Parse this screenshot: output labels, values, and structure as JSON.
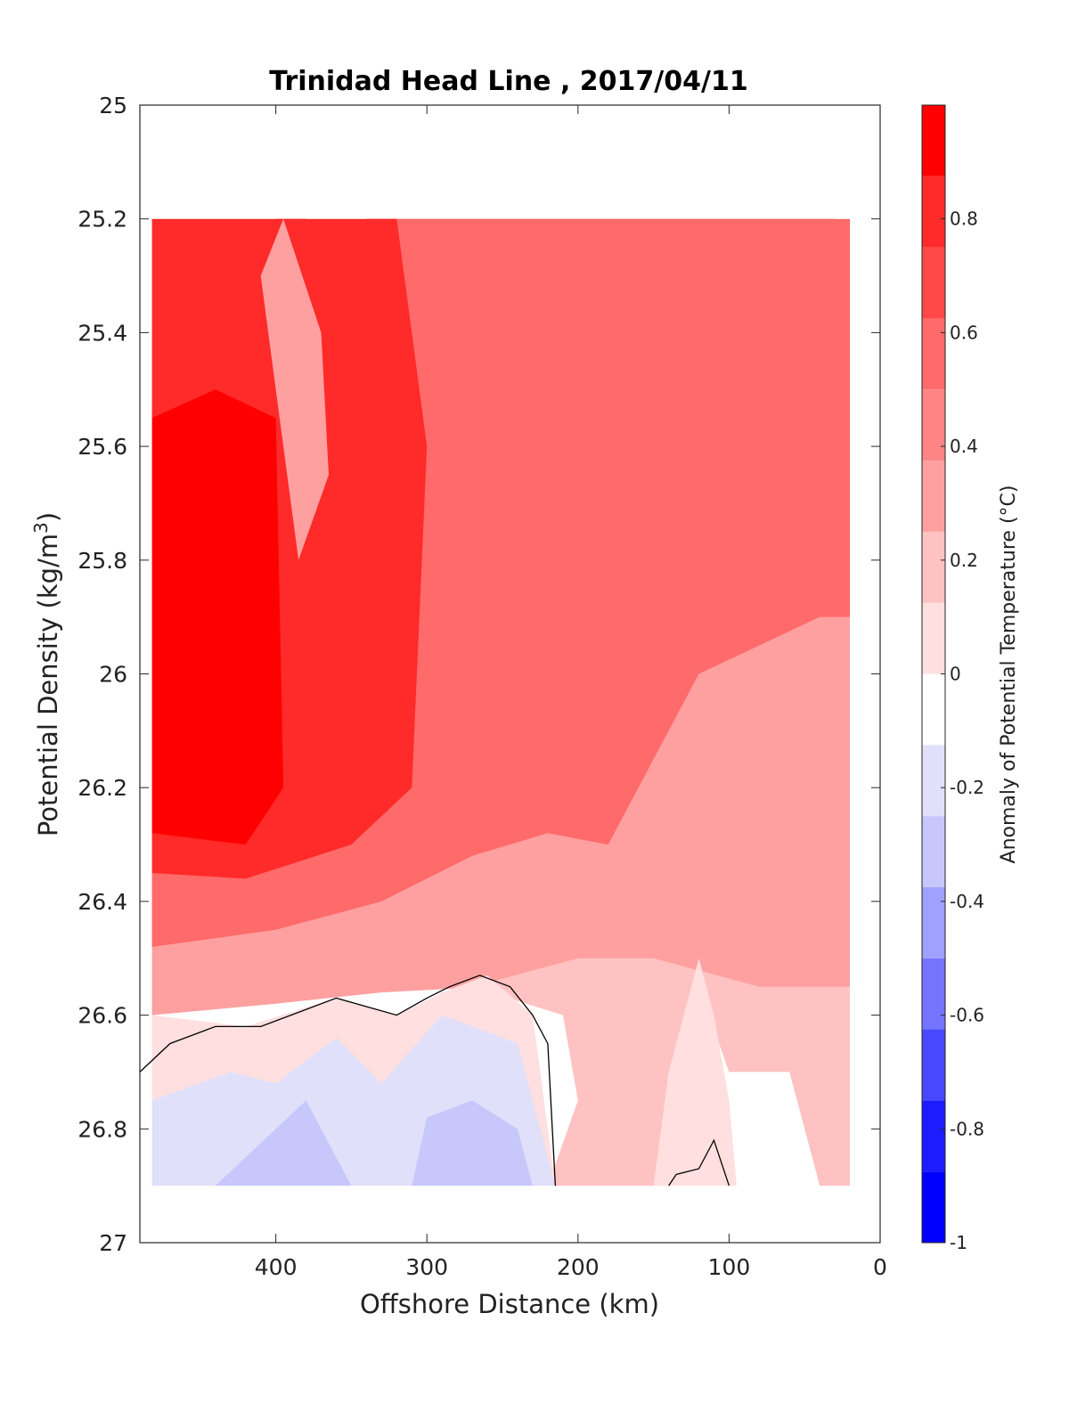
{
  "chart_data": {
    "type": "contour",
    "title": "Trinidad Head Line , 2017/04/11",
    "xlabel": "Offshore Distance (km)",
    "ylabel": "Potential Density (kg/m",
    "ylabel_sup": "3",
    "ylabel_end": ")",
    "xlim": [
      490,
      0
    ],
    "ylim": [
      25,
      27
    ],
    "x_reversed": true,
    "y_reversed": true,
    "xticks": [
      400,
      300,
      200,
      100,
      0
    ],
    "yticks": [
      25,
      25.2,
      25.4,
      25.6,
      25.8,
      26,
      26.2,
      26.4,
      26.6,
      26.8,
      27
    ],
    "ytick_labels": [
      "25",
      "25.2",
      "25.4",
      "25.6",
      "25.8",
      "26",
      "26.2",
      "26.4",
      "26.6",
      "26.8",
      "27"
    ],
    "colorbar": {
      "label": "Anomaly of Potential Temperature (°C)",
      "range": [
        -1,
        1
      ],
      "levels": [
        -1,
        -0.9,
        -0.7,
        -0.5,
        -0.3,
        -0.1,
        0.1,
        0.3,
        0.5,
        0.7,
        0.9,
        1
      ],
      "ticks": [
        0.8,
        0.6,
        0.4,
        0.2,
        0,
        -0.2,
        -0.4,
        -0.6,
        -0.8,
        -1
      ],
      "tick_labels": [
        "0.8",
        "0.6",
        "0.4",
        "0.2",
        "0",
        "-0.2",
        "-0.4",
        "-0.6",
        "-0.8",
        "-1"
      ],
      "colors": [
        "#0000ff",
        "#1c1cff",
        "#4848ff",
        "#7474ff",
        "#a0a0ff",
        "#c7c7fb",
        "#e0e0fa",
        "#ffffff",
        "#ffdfdf",
        "#ffc2c2",
        "#ffa0a0",
        "#ff8585",
        "#ff6a6a",
        "#ff4848",
        "#ff2a2a",
        "#ff0000"
      ]
    },
    "data_top_boundary_density": [
      {
        "x": 490,
        "y": 25.2
      },
      {
        "x": 400,
        "y": 25.2
      },
      {
        "x": 390,
        "y": 25.1
      },
      {
        "x": 380,
        "y": 25.2
      },
      {
        "x": 340,
        "y": 25.2
      },
      {
        "x": 330,
        "y": 25.1
      },
      {
        "x": 130,
        "y": 25.1
      },
      {
        "x": 118,
        "y": 25.0
      },
      {
        "x": 80,
        "y": 25.0
      },
      {
        "x": 62,
        "y": 25.1
      },
      {
        "x": 40,
        "y": 25.1
      },
      {
        "x": 30,
        "y": 25.2
      },
      {
        "x": 20,
        "y": 25.2
      }
    ],
    "data_bottom_density": 26.9,
    "regions": [
      {
        "anomaly": 0.35,
        "label_level": "0.3-0.5",
        "points": [
          [
            482,
            26.6
          ],
          [
            400,
            26.58
          ],
          [
            330,
            26.56
          ],
          [
            260,
            26.55
          ],
          [
            210,
            26.56
          ],
          [
            170,
            26.58
          ],
          [
            120,
            26.55
          ],
          [
            60,
            26.58
          ],
          [
            20,
            26.6
          ],
          [
            20,
            25.2
          ],
          [
            482,
            25.2
          ]
        ]
      },
      {
        "anomaly": 0.55,
        "points": [
          [
            482,
            26.48
          ],
          [
            400,
            26.45
          ],
          [
            330,
            26.4
          ],
          [
            270,
            26.32
          ],
          [
            220,
            26.28
          ],
          [
            180,
            26.3
          ],
          [
            150,
            26.15
          ],
          [
            120,
            26.0
          ],
          [
            80,
            25.95
          ],
          [
            40,
            25.9
          ],
          [
            20,
            25.9
          ],
          [
            20,
            25.2
          ],
          [
            482,
            25.2
          ]
        ]
      },
      {
        "anomaly": 0.75,
        "points": [
          [
            482,
            26.35
          ],
          [
            420,
            26.36
          ],
          [
            350,
            26.3
          ],
          [
            310,
            26.2
          ],
          [
            300,
            25.6
          ],
          [
            320,
            25.2
          ],
          [
            482,
            25.2
          ]
        ]
      },
      {
        "anomaly": 0.95,
        "points": [
          [
            482,
            26.28
          ],
          [
            420,
            26.3
          ],
          [
            395,
            26.2
          ],
          [
            400,
            25.55
          ],
          [
            440,
            25.5
          ],
          [
            482,
            25.55
          ]
        ]
      },
      {
        "anomaly": 0.35,
        "points": [
          [
            395,
            25.2
          ],
          [
            370,
            25.4
          ],
          [
            365,
            25.65
          ],
          [
            385,
            25.8
          ],
          [
            400,
            25.5
          ],
          [
            410,
            25.3
          ]
        ]
      },
      {
        "anomaly": 0.15,
        "points": [
          [
            270,
            26.55
          ],
          [
            210,
            26.6
          ],
          [
            200,
            26.75
          ],
          [
            220,
            26.9
          ],
          [
            140,
            26.9
          ],
          [
            120,
            26.55
          ],
          [
            100,
            26.7
          ],
          [
            60,
            26.7
          ],
          [
            40,
            26.9
          ],
          [
            20,
            26.9
          ],
          [
            20,
            26.55
          ],
          [
            80,
            26.55
          ],
          [
            150,
            26.5
          ],
          [
            200,
            26.5
          ]
        ]
      },
      {
        "anomaly": 0.0,
        "points": [
          [
            482,
            26.6
          ],
          [
            420,
            26.62
          ],
          [
            360,
            26.57
          ],
          [
            320,
            26.6
          ],
          [
            290,
            26.56
          ],
          [
            260,
            26.53
          ],
          [
            230,
            26.6
          ],
          [
            215,
            26.9
          ],
          [
            482,
            26.9
          ]
        ]
      },
      {
        "anomaly": -0.15,
        "points": [
          [
            482,
            26.75
          ],
          [
            430,
            26.7
          ],
          [
            400,
            26.72
          ],
          [
            360,
            26.64
          ],
          [
            330,
            26.72
          ],
          [
            290,
            26.6
          ],
          [
            240,
            26.65
          ],
          [
            215,
            26.9
          ],
          [
            482,
            26.9
          ]
        ]
      },
      {
        "anomaly": -0.35,
        "points": [
          [
            440,
            26.9
          ],
          [
            400,
            26.8
          ],
          [
            380,
            26.75
          ],
          [
            350,
            26.9
          ]
        ]
      },
      {
        "anomaly": -0.35,
        "points": [
          [
            310,
            26.9
          ],
          [
            300,
            26.78
          ],
          [
            270,
            26.75
          ],
          [
            240,
            26.8
          ],
          [
            230,
            26.9
          ]
        ]
      },
      {
        "anomaly": 0.0,
        "points": [
          [
            150,
            26.9
          ],
          [
            140,
            26.7
          ],
          [
            120,
            26.5
          ],
          [
            110,
            26.6
          ],
          [
            100,
            26.75
          ],
          [
            95,
            26.9
          ]
        ]
      }
    ],
    "zero_contour": [
      {
        "x": 490,
        "y": 26.7
      },
      {
        "x": 470,
        "y": 26.65
      },
      {
        "x": 440,
        "y": 26.62
      },
      {
        "x": 410,
        "y": 26.62
      },
      {
        "x": 390,
        "y": 26.6
      },
      {
        "x": 360,
        "y": 26.57
      },
      {
        "x": 320,
        "y": 26.6
      },
      {
        "x": 300,
        "y": 26.57
      },
      {
        "x": 285,
        "y": 26.55
      },
      {
        "x": 265,
        "y": 26.53
      },
      {
        "x": 245,
        "y": 26.55
      },
      {
        "x": 230,
        "y": 26.6
      },
      {
        "x": 220,
        "y": 26.65
      },
      {
        "x": 215,
        "y": 26.9
      }
    ],
    "zero_contour_2": [
      {
        "x": 140,
        "y": 26.9
      },
      {
        "x": 135,
        "y": 26.88
      },
      {
        "x": 120,
        "y": 26.87
      },
      {
        "x": 110,
        "y": 26.82
      },
      {
        "x": 100,
        "y": 26.9
      }
    ]
  }
}
